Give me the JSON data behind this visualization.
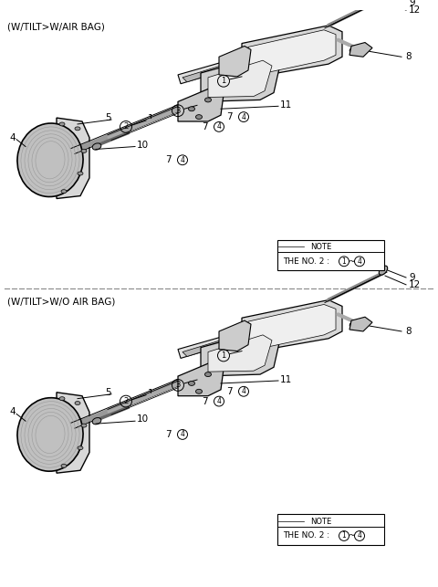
{
  "bg_color": "#ffffff",
  "line_color": "#000000",
  "gray_color": "#888888",
  "light_gray": "#cccccc",
  "title1": "(W/TILT>W/AIR BAG)",
  "title2": "(W/TILT>W/O AIR BAG)",
  "note_text1": "NOTE\nTHE NO. 2 : ① ~ ④",
  "note_text2": "NOTE\nTHE NO. 2 : ① ~ ④",
  "fig_width": 4.8,
  "fig_height": 6.43,
  "dpi": 100
}
